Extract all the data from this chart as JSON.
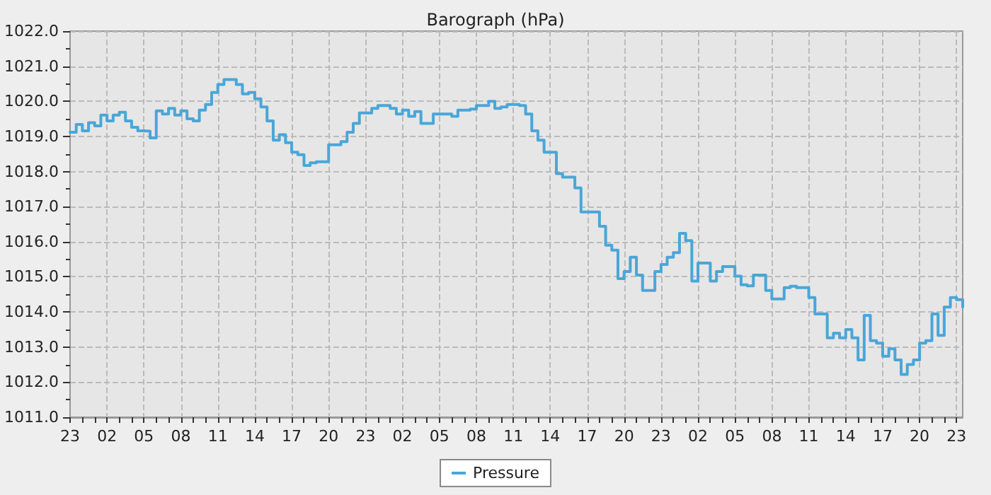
{
  "chart_data": {
    "type": "step",
    "title": "Barograph (hPa)",
    "categories": [
      "23",
      null,
      null,
      null,
      null,
      null,
      "02",
      null,
      null,
      null,
      null,
      null,
      "05",
      null,
      null,
      null,
      null,
      null,
      "08",
      null,
      null,
      null,
      null,
      null,
      "11",
      null,
      null,
      null,
      null,
      null,
      "14",
      null,
      null,
      null,
      null,
      null,
      "17",
      null,
      null,
      null,
      null,
      null,
      "20",
      null,
      null,
      null,
      null,
      null,
      "23",
      null,
      null,
      null,
      null,
      null,
      "02",
      null,
      null,
      null,
      null,
      null,
      "05",
      null,
      null,
      null,
      null,
      null,
      "08",
      null,
      null,
      null,
      null,
      null,
      "11",
      null,
      null,
      null,
      null,
      null,
      "14",
      null,
      null,
      null,
      null,
      null,
      "17",
      null,
      null,
      null,
      null,
      null,
      "20",
      null,
      null,
      null,
      null,
      null,
      "23",
      null,
      null,
      null,
      null,
      null,
      "02",
      null,
      null,
      null,
      null,
      null,
      "05",
      null,
      null,
      null,
      null,
      null,
      "08",
      null,
      null,
      null,
      null,
      null,
      "11",
      null,
      null,
      null,
      null,
      null,
      "14",
      null,
      null,
      null,
      null,
      null,
      "17",
      null,
      null,
      null,
      null,
      null,
      "20",
      null,
      null,
      null,
      null,
      null,
      "23",
      null
    ],
    "series": [
      {
        "name": "Pressure",
        "color": "#4aa6d8",
        "values": [
          1019.12,
          1019.34,
          1019.16,
          1019.39,
          1019.3,
          1019.61,
          1019.44,
          1019.61,
          1019.69,
          1019.44,
          1019.26,
          1019.16,
          1019.15,
          1018.96,
          1019.73,
          1019.64,
          1019.8,
          1019.61,
          1019.73,
          1019.5,
          1019.44,
          1019.75,
          1019.91,
          1020.25,
          1020.48,
          1020.62,
          1020.62,
          1020.48,
          1020.21,
          1020.25,
          1020.07,
          1019.84,
          1019.44,
          1018.89,
          1019.05,
          1018.82,
          1018.55,
          1018.48,
          1018.17,
          1018.25,
          1018.28,
          1018.28,
          1018.76,
          1018.76,
          1018.85,
          1019.12,
          1019.37,
          1019.67,
          1019.67,
          1019.8,
          1019.88,
          1019.88,
          1019.8,
          1019.64,
          1019.75,
          1019.57,
          1019.71,
          1019.37,
          1019.37,
          1019.64,
          1019.64,
          1019.64,
          1019.57,
          1019.75,
          1019.75,
          1019.78,
          1019.88,
          1019.88,
          1020.0,
          1019.8,
          1019.84,
          1019.91,
          1019.91,
          1019.88,
          1019.64,
          1019.16,
          1018.89,
          1018.55,
          1018.55,
          1017.94,
          1017.84,
          1017.84,
          1017.53,
          1016.85,
          1016.85,
          1016.85,
          1016.44,
          1015.9,
          1015.76,
          1014.95,
          1015.15,
          1015.56,
          1015.05,
          1014.61,
          1014.61,
          1015.15,
          1015.35,
          1015.56,
          1015.69,
          1016.24,
          1016.03,
          1014.88,
          1015.39,
          1015.39,
          1014.88,
          1015.15,
          1015.29,
          1015.29,
          1015.02,
          1014.77,
          1014.74,
          1015.05,
          1015.05,
          1014.61,
          1014.37,
          1014.37,
          1014.69,
          1014.73,
          1014.69,
          1014.69,
          1014.41,
          1013.94,
          1013.94,
          1013.26,
          1013.39,
          1013.26,
          1013.5,
          1013.26,
          1012.63,
          1013.9,
          1013.18,
          1013.11,
          1012.74,
          1012.95,
          1012.63,
          1012.22,
          1012.5,
          1012.63,
          1013.11,
          1013.18,
          1013.94,
          1013.33,
          1014.14,
          1014.41,
          1014.35,
          1014.14
        ]
      }
    ],
    "ylim": [
      1011,
      1022
    ],
    "yticks": [
      {
        "value": 1011,
        "label": "1011.0"
      },
      {
        "value": 1011.5,
        "label": null
      },
      {
        "value": 1012,
        "label": "1012.0"
      },
      {
        "value": 1012.5,
        "label": null
      },
      {
        "value": 1013,
        "label": "1013.0"
      },
      {
        "value": 1013.5,
        "label": null
      },
      {
        "value": 1014,
        "label": "1014.0"
      },
      {
        "value": 1014.5,
        "label": null
      },
      {
        "value": 1015,
        "label": "1015.0"
      },
      {
        "value": 1015.5,
        "label": null
      },
      {
        "value": 1016,
        "label": "1016.0"
      },
      {
        "value": 1016.5,
        "label": null
      },
      {
        "value": 1017,
        "label": "1017.0"
      },
      {
        "value": 1017.5,
        "label": null
      },
      {
        "value": 1018,
        "label": "1018.0"
      },
      {
        "value": 1018.5,
        "label": null
      },
      {
        "value": 1019,
        "label": "1019.0"
      },
      {
        "value": 1019.5,
        "label": null
      },
      {
        "value": 1020,
        "label": "1020.0"
      },
      {
        "value": 1020.5,
        "label": null
      },
      {
        "value": 1021,
        "label": "1021.0"
      },
      {
        "value": 1021.5,
        "label": null
      },
      {
        "value": 1022,
        "label": "1022.0"
      }
    ],
    "grid": true,
    "legend": "bottom",
    "marker": "none",
    "line_style": "solid"
  }
}
